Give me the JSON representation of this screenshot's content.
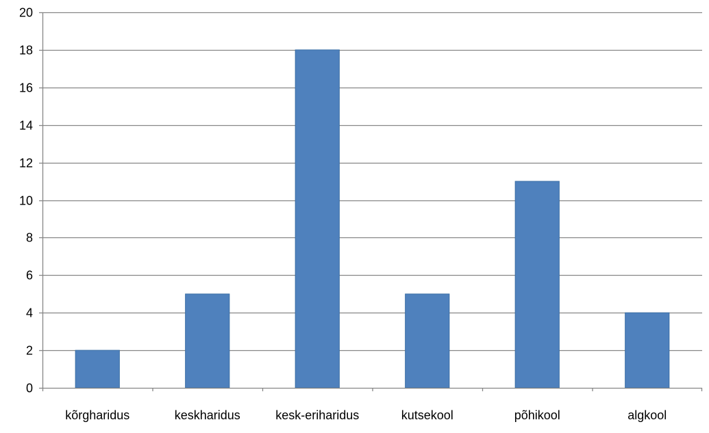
{
  "chart_data": {
    "type": "bar",
    "title": "",
    "xlabel": "",
    "ylabel": "",
    "categories": [
      "kõrgharidus",
      "keskharidus",
      "kesk-eriharidus",
      "kutsekool",
      "põhikool",
      "algkool"
    ],
    "values": [
      2,
      5,
      18,
      5,
      11,
      4
    ],
    "ylim": [
      0,
      20
    ],
    "yticks": [
      0,
      2,
      4,
      6,
      8,
      10,
      12,
      14,
      16,
      18,
      20
    ],
    "grid": true,
    "legend": "none",
    "colors": {
      "bar": "#4f81bd",
      "bar_edge": "#3a6ea5",
      "grid": "#868686",
      "axis": "#868686"
    }
  }
}
